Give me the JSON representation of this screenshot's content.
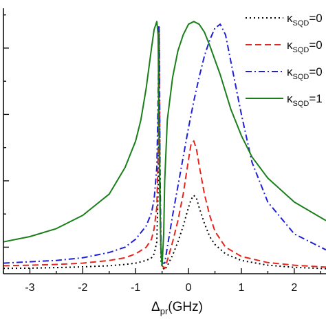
{
  "chart_data": {
    "type": "line",
    "title": "",
    "xlabel_symbol": "Δ",
    "xlabel_sub": "pr",
    "xlabel_unit": "(GHz)",
    "ylabel": "",
    "xlim": [
      -3.5,
      2.6
    ],
    "ylim": [
      0,
      1.0
    ],
    "x_ticks": [
      -3,
      -2,
      -1,
      0,
      1,
      2
    ],
    "x_tick_labels": [
      "-3",
      "-2",
      "-1",
      "0",
      "1",
      "2"
    ],
    "grid": false,
    "legend_position": "top-right",
    "series": [
      {
        "name_symbol": "κ",
        "name_sub": "SQD",
        "name_value": "=0",
        "color": "#000000",
        "dash": "dotted",
        "points": [
          [
            -3.5,
            0.02
          ],
          [
            -3.0,
            0.021
          ],
          [
            -2.5,
            0.023
          ],
          [
            -2.0,
            0.026
          ],
          [
            -1.5,
            0.03
          ],
          [
            -1.2,
            0.035
          ],
          [
            -1.0,
            0.04
          ],
          [
            -0.8,
            0.05
          ],
          [
            -0.7,
            0.06
          ],
          [
            -0.65,
            0.075
          ],
          [
            -0.6,
            0.12
          ],
          [
            -0.57,
            0.35
          ],
          [
            -0.555,
            0.93
          ],
          [
            -0.545,
            0.6
          ],
          [
            -0.535,
            0.2
          ],
          [
            -0.52,
            0.05
          ],
          [
            -0.5,
            0.025
          ],
          [
            -0.45,
            0.015
          ],
          [
            -0.4,
            0.03
          ],
          [
            -0.3,
            0.07
          ],
          [
            -0.2,
            0.12
          ],
          [
            -0.1,
            0.18
          ],
          [
            0.0,
            0.25
          ],
          [
            0.05,
            0.28
          ],
          [
            0.1,
            0.295
          ],
          [
            0.15,
            0.285
          ],
          [
            0.2,
            0.25
          ],
          [
            0.3,
            0.19
          ],
          [
            0.4,
            0.14
          ],
          [
            0.5,
            0.11
          ],
          [
            0.7,
            0.075
          ],
          [
            1.0,
            0.05
          ],
          [
            1.5,
            0.032
          ],
          [
            2.0,
            0.024
          ],
          [
            2.6,
            0.019
          ]
        ]
      },
      {
        "name_symbol": "κ",
        "name_sub": "SQD",
        "name_value": "=0",
        "color": "#e8241c",
        "dash": "dashed",
        "points": [
          [
            -3.5,
            0.03
          ],
          [
            -3.0,
            0.032
          ],
          [
            -2.5,
            0.035
          ],
          [
            -2.0,
            0.04
          ],
          [
            -1.5,
            0.05
          ],
          [
            -1.2,
            0.06
          ],
          [
            -1.0,
            0.075
          ],
          [
            -0.8,
            0.1
          ],
          [
            -0.7,
            0.13
          ],
          [
            -0.65,
            0.17
          ],
          [
            -0.6,
            0.25
          ],
          [
            -0.575,
            0.45
          ],
          [
            -0.56,
            0.93
          ],
          [
            -0.55,
            0.7
          ],
          [
            -0.54,
            0.3
          ],
          [
            -0.52,
            0.08
          ],
          [
            -0.5,
            0.03
          ],
          [
            -0.45,
            0.02
          ],
          [
            -0.4,
            0.05
          ],
          [
            -0.3,
            0.12
          ],
          [
            -0.2,
            0.2
          ],
          [
            -0.1,
            0.3
          ],
          [
            0.0,
            0.43
          ],
          [
            0.05,
            0.49
          ],
          [
            0.1,
            0.5
          ],
          [
            0.15,
            0.47
          ],
          [
            0.2,
            0.41
          ],
          [
            0.3,
            0.3
          ],
          [
            0.4,
            0.22
          ],
          [
            0.5,
            0.16
          ],
          [
            0.7,
            0.1
          ],
          [
            1.0,
            0.065
          ],
          [
            1.5,
            0.042
          ],
          [
            2.0,
            0.032
          ],
          [
            2.6,
            0.025
          ]
        ]
      },
      {
        "name_symbol": "κ",
        "name_sub": "SQD",
        "name_value": "=0",
        "color": "#1f1fd6",
        "dash": "dashdot",
        "points": [
          [
            -3.5,
            0.04
          ],
          [
            -3.0,
            0.045
          ],
          [
            -2.5,
            0.05
          ],
          [
            -2.0,
            0.06
          ],
          [
            -1.5,
            0.08
          ],
          [
            -1.2,
            0.1
          ],
          [
            -1.0,
            0.13
          ],
          [
            -0.8,
            0.18
          ],
          [
            -0.7,
            0.23
          ],
          [
            -0.65,
            0.28
          ],
          [
            -0.6,
            0.4
          ],
          [
            -0.575,
            0.65
          ],
          [
            -0.56,
            0.93
          ],
          [
            -0.55,
            0.8
          ],
          [
            -0.54,
            0.4
          ],
          [
            -0.52,
            0.1
          ],
          [
            -0.5,
            0.04
          ],
          [
            -0.45,
            0.04
          ],
          [
            -0.4,
            0.1
          ],
          [
            -0.3,
            0.22
          ],
          [
            -0.2,
            0.33
          ],
          [
            -0.1,
            0.44
          ],
          [
            0.0,
            0.55
          ],
          [
            0.1,
            0.65
          ],
          [
            0.2,
            0.74
          ],
          [
            0.3,
            0.82
          ],
          [
            0.4,
            0.88
          ],
          [
            0.5,
            0.925
          ],
          [
            0.6,
            0.94
          ],
          [
            0.7,
            0.9
          ],
          [
            0.8,
            0.8
          ],
          [
            1.0,
            0.6
          ],
          [
            1.2,
            0.42
          ],
          [
            1.5,
            0.27
          ],
          [
            2.0,
            0.15
          ],
          [
            2.6,
            0.09
          ]
        ]
      },
      {
        "name_symbol": "κ",
        "name_sub": "SQD",
        "name_value": "=1",
        "color": "#1a7f1a",
        "dash": "solid",
        "points": [
          [
            -3.5,
            0.12
          ],
          [
            -3.0,
            0.14
          ],
          [
            -2.5,
            0.17
          ],
          [
            -2.0,
            0.22
          ],
          [
            -1.5,
            0.3
          ],
          [
            -1.2,
            0.4
          ],
          [
            -1.0,
            0.5
          ],
          [
            -0.9,
            0.58
          ],
          [
            -0.8,
            0.7
          ],
          [
            -0.7,
            0.85
          ],
          [
            -0.65,
            0.92
          ],
          [
            -0.6,
            0.95
          ],
          [
            -0.575,
            0.9
          ],
          [
            -0.56,
            0.6
          ],
          [
            -0.545,
            0.3
          ],
          [
            -0.52,
            0.08
          ],
          [
            -0.5,
            0.03
          ],
          [
            -0.47,
            0.15
          ],
          [
            -0.45,
            0.35
          ],
          [
            -0.4,
            0.58
          ],
          [
            -0.3,
            0.74
          ],
          [
            -0.2,
            0.84
          ],
          [
            -0.1,
            0.9
          ],
          [
            0.0,
            0.94
          ],
          [
            0.1,
            0.95
          ],
          [
            0.2,
            0.94
          ],
          [
            0.3,
            0.91
          ],
          [
            0.4,
            0.86
          ],
          [
            0.6,
            0.75
          ],
          [
            0.8,
            0.62
          ],
          [
            1.0,
            0.52
          ],
          [
            1.2,
            0.44
          ],
          [
            1.5,
            0.36
          ],
          [
            2.0,
            0.27
          ],
          [
            2.6,
            0.2
          ]
        ]
      }
    ]
  }
}
